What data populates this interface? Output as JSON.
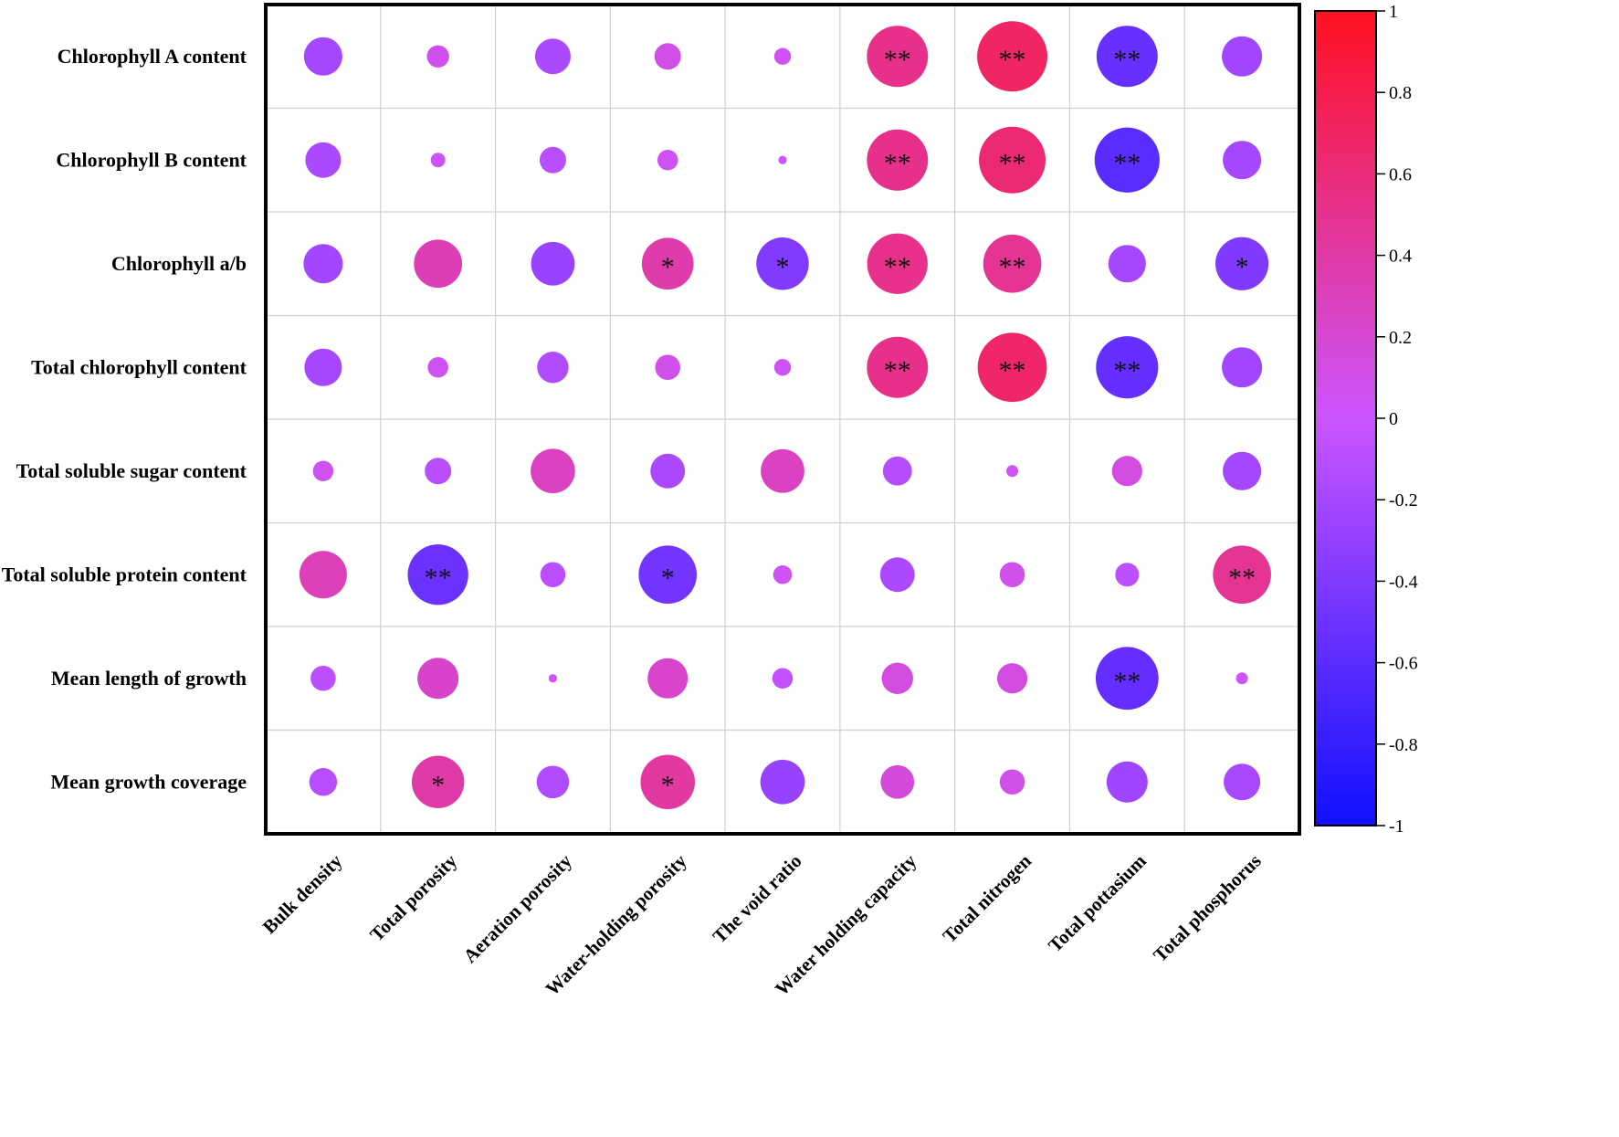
{
  "chart_data": {
    "type": "heatmap",
    "variant": "correlation bubble matrix",
    "rows": [
      "Chlorophyll A content",
      "Chlorophyll B content",
      "Chlorophyll a/b",
      "Total chlorophyll content",
      "Total soluble sugar content",
      "Total soluble protein content",
      "Mean length of growth",
      "Mean growth coverage"
    ],
    "columns": [
      "Bulk density",
      "Total porosity",
      "Aeration porosity",
      "Water-holding porosity",
      "The void ratio",
      "Water holding capacity",
      "Total nitrogen",
      "Total pottasium",
      "Total phosphorus"
    ],
    "values": [
      [
        -0.21,
        0.07,
        -0.18,
        0.1,
        0.04,
        0.53,
        0.7,
        -0.53,
        -0.23
      ],
      [
        -0.18,
        0.03,
        -0.1,
        0.06,
        0.01,
        0.53,
        0.63,
        -0.6,
        -0.21
      ],
      [
        -0.22,
        0.33,
        -0.27,
        0.38,
        -0.39,
        0.52,
        0.48,
        -0.2,
        -0.4
      ],
      [
        -0.2,
        0.06,
        -0.14,
        0.09,
        0.04,
        0.53,
        0.68,
        -0.55,
        -0.23
      ],
      [
        0.06,
        -0.1,
        0.28,
        -0.17,
        0.27,
        -0.12,
        0.02,
        0.13,
        -0.21
      ],
      [
        0.32,
        -0.52,
        -0.09,
        -0.48,
        0.05,
        -0.17,
        0.09,
        -0.08,
        0.48
      ],
      [
        -0.09,
        0.24,
        0.01,
        0.23,
        -0.06,
        0.14,
        0.13,
        -0.56,
        0.02
      ],
      [
        -0.11,
        0.39,
        -0.15,
        0.42,
        -0.28,
        0.16,
        0.09,
        -0.24,
        -0.19
      ]
    ],
    "significance": [
      [
        "",
        "",
        "",
        "",
        "",
        "**",
        "**",
        "**",
        ""
      ],
      [
        "",
        "",
        "",
        "",
        "",
        "**",
        "**",
        "**",
        ""
      ],
      [
        "",
        "",
        "",
        "*",
        "*",
        "**",
        "**",
        "",
        "*"
      ],
      [
        "",
        "",
        "",
        "",
        "",
        "**",
        "**",
        "**",
        ""
      ],
      [
        "",
        "",
        "",
        "",
        "",
        "",
        "",
        "",
        ""
      ],
      [
        "",
        "**",
        "",
        "*",
        "",
        "",
        "",
        "",
        "**"
      ],
      [
        "",
        "",
        "",
        "",
        "",
        "",
        "",
        "**",
        ""
      ],
      [
        "",
        "*",
        "",
        "*",
        "",
        "",
        "",
        "",
        ""
      ]
    ],
    "colorbar": {
      "range": [
        -1,
        1
      ],
      "ticks": [
        "1",
        "0.8",
        "0.6",
        "0.4",
        "0.2",
        "0",
        "-0.2",
        "-0.4",
        "-0.6",
        "-0.8",
        "-1"
      ],
      "colors": {
        "neg": "#1010ff",
        "mid": "#cc55ff",
        "pos": "#ff1020"
      }
    },
    "grid": true,
    "legend": "right"
  }
}
